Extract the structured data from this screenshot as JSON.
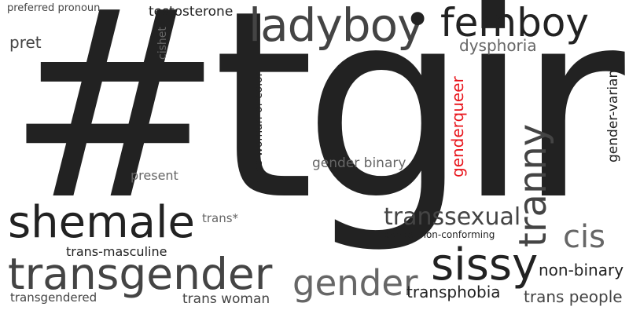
{
  "colors": {
    "background": "#ffffff",
    "dark": "#222222",
    "medium": "#444444",
    "light": "#666666",
    "accent": "#e8141b"
  },
  "words": [
    {
      "id": "tgirl",
      "text": "#tgirl",
      "color": "#222222"
    },
    {
      "id": "ladyboy",
      "text": "ladyboy",
      "color": "#444444"
    },
    {
      "id": "dot",
      "text": "•",
      "color": "#222222"
    },
    {
      "id": "femboy",
      "text": "femboy",
      "color": "#222222"
    },
    {
      "id": "preferred-pronoun",
      "text": "preferred pronoun",
      "color": "#444444"
    },
    {
      "id": "testosterone",
      "text": "testosterone",
      "color": "#222222"
    },
    {
      "id": "pret",
      "text": "pret",
      "color": "#444444"
    },
    {
      "id": "cishet",
      "text": "cishet",
      "color": "#666666"
    },
    {
      "id": "dysphoria",
      "text": "dysphoria",
      "color": "#666666"
    },
    {
      "id": "gender-variant",
      "text": "gender-variant",
      "color": "#222222"
    },
    {
      "id": "trans-woman-of-color",
      "text": "trans woman of color",
      "color": "#222222"
    },
    {
      "id": "genderqueer",
      "text": "genderqueer",
      "color": "#e8141b"
    },
    {
      "id": "tranny",
      "text": "tranny",
      "color": "#444444"
    },
    {
      "id": "gender-binary",
      "text": "gender binary",
      "color": "#666666"
    },
    {
      "id": "present",
      "text": "present",
      "color": "#666666"
    },
    {
      "id": "shemale",
      "text": "shemale",
      "color": "#222222"
    },
    {
      "id": "trans-star",
      "text": "trans*",
      "color": "#666666"
    },
    {
      "id": "transsexual",
      "text": "transsexual",
      "color": "#444444"
    },
    {
      "id": "gender-non-conforming",
      "text": "gender non-conforming",
      "color": "#222222"
    },
    {
      "id": "cis",
      "text": "cis",
      "color": "#666666"
    },
    {
      "id": "trans-masculine",
      "text": "trans-masculine",
      "color": "#222222"
    },
    {
      "id": "transgender",
      "text": "transgender",
      "color": "#444444"
    },
    {
      "id": "gender",
      "text": "gender",
      "color": "#666666"
    },
    {
      "id": "sissy",
      "text": "sissy",
      "color": "#222222"
    },
    {
      "id": "non-binary",
      "text": "non-binary",
      "color": "#222222"
    },
    {
      "id": "transphobia",
      "text": "transphobia",
      "color": "#222222"
    },
    {
      "id": "trans-people",
      "text": "trans people",
      "color": "#444444"
    },
    {
      "id": "transgendered",
      "text": "transgendered",
      "color": "#444444"
    },
    {
      "id": "trans-woman",
      "text": "trans woman",
      "color": "#444444"
    }
  ]
}
